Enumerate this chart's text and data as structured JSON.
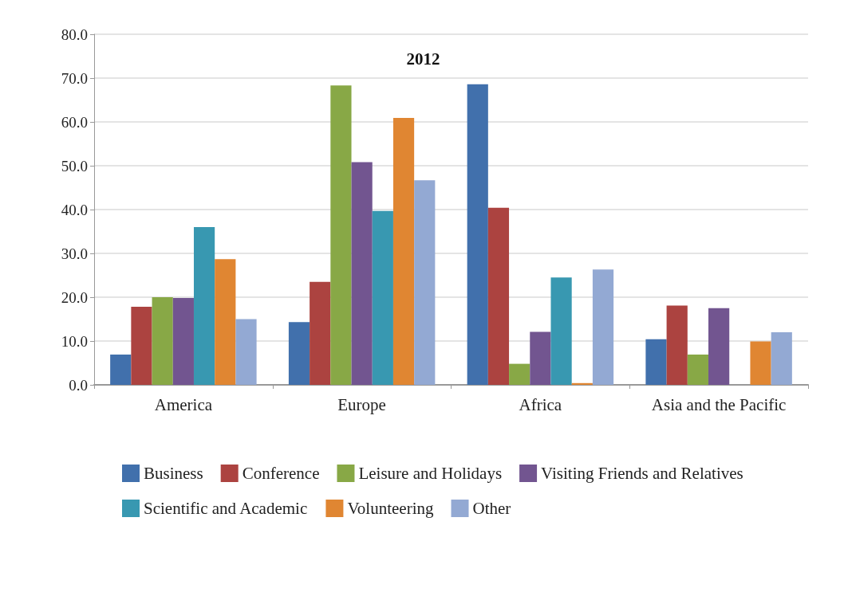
{
  "chart_data": {
    "type": "bar",
    "title": "2012",
    "categories": [
      "America",
      "Europe",
      "Africa",
      "Asia and the Pacific"
    ],
    "series": [
      {
        "name": "Business",
        "color": "#4170ac",
        "values": [
          6.9,
          14.3,
          68.6,
          10.4
        ]
      },
      {
        "name": "Conference",
        "color": "#ac4340",
        "values": [
          17.8,
          23.5,
          40.4,
          18.1
        ]
      },
      {
        "name": "Leisure and Holidays",
        "color": "#88a846",
        "values": [
          20.0,
          68.3,
          4.8,
          6.9
        ]
      },
      {
        "name": "Visiting Friends and Relatives",
        "color": "#725590",
        "values": [
          19.8,
          50.8,
          12.1,
          17.5
        ]
      },
      {
        "name": "Scientific and Academic",
        "color": "#3898b1",
        "values": [
          36.0,
          39.7,
          24.5,
          0
        ]
      },
      {
        "name": "Volunteering",
        "color": "#e08632",
        "values": [
          28.7,
          60.9,
          0.4,
          9.9
        ]
      },
      {
        "name": "Other",
        "color": "#93a9d3",
        "values": [
          15.0,
          46.7,
          26.3,
          12.0
        ]
      }
    ],
    "ylim": [
      0,
      80
    ],
    "yticks": [
      {
        "value": 0,
        "label": "0.0"
      },
      {
        "value": 10,
        "label": "10.0"
      },
      {
        "value": 20,
        "label": "20.0"
      },
      {
        "value": 30,
        "label": "30.0"
      },
      {
        "value": 40,
        "label": "40.0"
      },
      {
        "value": 50,
        "label": "50.0"
      },
      {
        "value": 60,
        "label": "60.0"
      },
      {
        "value": 70,
        "label": "70.0"
      },
      {
        "value": 80,
        "label": "80.0"
      }
    ],
    "grid": "y",
    "legend": "bottom"
  }
}
